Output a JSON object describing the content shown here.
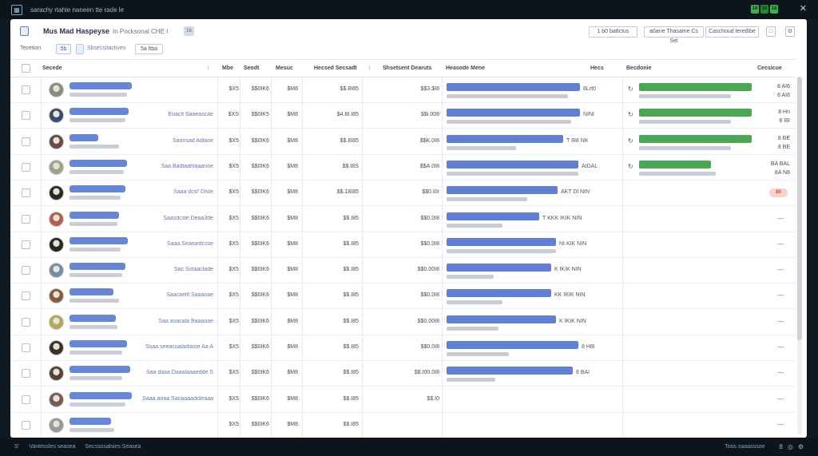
{
  "window_title": "sarachy rtahle naneen tte rade le",
  "status_indicators": [
    "19",
    "10",
    "18"
  ],
  "page": {
    "title": "Mus Mad Haspeyse",
    "meta": "In  Pocksonal CHE I",
    "tag": "16",
    "buttons": [
      {
        "label": "1 b0 ba8ctus"
      },
      {
        "label": "a0ane Thasame Cs Sel"
      },
      {
        "label": "Caschoud teredibe"
      }
    ]
  },
  "toolbar": {
    "label": "Tecetion",
    "chip1": "5b",
    "text": "Sbsecsitactives",
    "chip2": "5a ltba"
  },
  "columns": [
    "Secede",
    "Mbe",
    "Seodt",
    "Mesuc",
    "Hecsed Secsadt",
    "Shsetsent Dearuts",
    "Heasode Mene",
    "Hecs",
    "Becdonie",
    "Cecsicue"
  ],
  "rows": [
    {
      "name": "",
      "c1": "$X5",
      "c2": "$$0IK6",
      "c3": "$M8",
      "c4": "$$.8I85",
      "c5": "$$3.$I8",
      "prog": 0.88,
      "prog_sub": 0.8,
      "prog_text": "8Lrt0",
      "conv": 0.88,
      "conv_sub": 0.72,
      "conv_text": "8 AI6",
      "conv_text2": "8 AI6",
      "avatar": "#8a8c7c"
    },
    {
      "name": "Eoaclt Saaeascae",
      "c1": "$XS",
      "c2": "$$0IK5",
      "c3": "$M8",
      "c4": "$4.8I.I85",
      "c5": "$$i.008",
      "prog": 0.88,
      "prog_sub": 0.82,
      "prog_text": "NINI",
      "conv": 0.88,
      "conv_sub": 0.72,
      "conv_text": "8 Hn",
      "conv_text2": "8 I8I",
      "avatar": "#3a4a74"
    },
    {
      "name": "Saonsad Adlaoe",
      "c1": "$X5",
      "c2": "$$0IK6",
      "c3": "$M8",
      "c4": "$$.8I85",
      "c5": "$$K.0I8",
      "prog": 0.77,
      "prog_sub": 0.46,
      "prog_text": "T 8I8 NK",
      "conv": 0.88,
      "conv_sub": 0.72,
      "conv_text": "8 BE",
      "conv_text2": "8 BE",
      "avatar": "#6a4a3e"
    },
    {
      "name": "Saa Badtaahlaaanoe",
      "c1": "$X5",
      "c2": "$$0IK6",
      "c3": "$M8",
      "c4": "$$.I8S",
      "c5": "$$A.0I8",
      "prog": 0.87,
      "prog_sub": 0.87,
      "prog_text": "AIDAL",
      "conv": 0.56,
      "conv_sub": 0.6,
      "conv_text": "BA BAL",
      "conv_text2": "8A N8",
      "avatar": "#9ea583"
    },
    {
      "name": "Saaa dcsl’ Dlste",
      "c1": "$X5",
      "c2": "$$0IK6",
      "c3": "$M8",
      "c4": "$$.18I85",
      "c5": "$$0.I0r",
      "prog": 0.73,
      "prog_sub": 0.53,
      "prog_text": "AKT Dl NIN",
      "conv": 0,
      "conv_sub": 0,
      "conv_text": "",
      "conv_text2": "",
      "alert": "80",
      "avatar": "#2e2a22"
    },
    {
      "name": "Saasdcsle Deaa3de",
      "c1": "$X5",
      "c2": "$$0IK6",
      "c3": "$M8",
      "c4": "$$.I85",
      "c5": "$$0.0I8",
      "prog": 0.61,
      "prog_sub": 0.37,
      "prog_text": "T KKK IKIK NIN",
      "conv": 0,
      "conv_sub": 0,
      "conv_text": "",
      "conv_text2": "",
      "dash": "—",
      "avatar": "#b3604a"
    },
    {
      "name": "Saaa Seaisedcsse",
      "c1": "$X5",
      "c2": "$$0IK6",
      "c3": "$M8",
      "c4": "$$.I85",
      "c5": "$$0.0I8",
      "prog": 0.72,
      "prog_sub": 0.72,
      "prog_text": "NI.KIK NIN",
      "conv": 0,
      "conv_sub": 0,
      "conv_text": "",
      "conv_text2": "",
      "dash": "—",
      "avatar": "#2a2620"
    },
    {
      "name": "Sac Sotaaclade",
      "c1": "$X5",
      "c2": "$$0IK6",
      "c3": "$M8",
      "c4": "$$.I85",
      "c5": "$$0.00I8",
      "prog": 0.69,
      "prog_sub": 0.31,
      "prog_text": "K IKIK NIN",
      "conv": 0,
      "conv_sub": 0,
      "conv_text": "",
      "conv_text2": "",
      "dash": "—",
      "avatar": "#7b8aa4"
    },
    {
      "name": "Saacaeltl Saaaoae",
      "c1": "$X5",
      "c2": "$$0IK6",
      "c3": "$M8",
      "c4": "$$.I85",
      "c5": "$$0.0I8",
      "prog": 0.69,
      "prog_sub": 0.37,
      "prog_text": "KK IKIK NIN",
      "conv": 0,
      "conv_sub": 0,
      "conv_text": "",
      "conv_text2": "",
      "dash": "—",
      "avatar": "#8a5a3a"
    },
    {
      "name": "Saa asacala Baaaoae",
      "c1": "$X5",
      "c2": "$$0IK6",
      "c3": "$M8",
      "c4": "$$.I85",
      "c5": "$$0.00I8",
      "prog": 0.72,
      "prog_sub": 0.34,
      "prog_text": "K IKIK NIN",
      "conv": 0,
      "conv_sub": 0,
      "conv_text": "",
      "conv_text2": "",
      "dash": "—",
      "avatar": "#b6a858"
    },
    {
      "name": "Ssaa seeacoaladiaste Aa A",
      "c1": "$X5",
      "c2": "$$0IK6",
      "c3": "$M8",
      "c4": "$$.I85",
      "c5": "$$0.0I8",
      "prog": 0.87,
      "prog_sub": 0.41,
      "prog_text": "8 H8I",
      "conv": 0,
      "conv_sub": 0,
      "conv_text": "",
      "conv_text2": "",
      "dash": "—",
      "avatar": "#3a3224"
    },
    {
      "name": "Saa daaa Daaalaaaedde S",
      "c1": "$X5",
      "c2": "$$0IK6",
      "c3": "$M8",
      "c4": "$$.I85",
      "c5": "$$.I00.0I8",
      "prog": 0.83,
      "prog_sub": 0.32,
      "prog_text": "8 BAI",
      "conv": 0,
      "conv_sub": 0,
      "conv_text": "",
      "conv_text2": "",
      "dash": "—",
      "avatar": "#5a4230"
    },
    {
      "name": "Saaa aoaa Saoaaaadoleaaa",
      "c1": "$X5",
      "c2": "$$0IK6",
      "c3": "$M8",
      "c4": "$$.I85",
      "c5": "$$.I0",
      "prog": 0,
      "prog_sub": 0,
      "prog_text": "",
      "conv": 0,
      "conv_sub": 0,
      "conv_text": "",
      "conv_text2": "",
      "dash": "—",
      "avatar": "#7c5a50"
    },
    {
      "name": "",
      "c1": "$X5",
      "c2": "$$0IK6",
      "c3": "$M8",
      "c4": "$$.I85",
      "c5": "",
      "prog": 0,
      "prog_sub": 0,
      "prog_text": "",
      "conv": 0,
      "conv_sub": 0,
      "conv_text": "",
      "conv_text2": "",
      "dash": "—",
      "avatar": "#9a9a92"
    }
  ],
  "bottom_bar": {
    "left": [
      "S’",
      "Vantessles seasea",
      "Secssosalsies Seasea"
    ],
    "right": "Toos saaasssoe",
    "glyphs": [
      "8",
      "◎",
      "⚙"
    ]
  },
  "colors": {
    "accent_blue": "#5f80d4",
    "accent_green": "#4aa853",
    "alert_red": "#d9472f"
  }
}
